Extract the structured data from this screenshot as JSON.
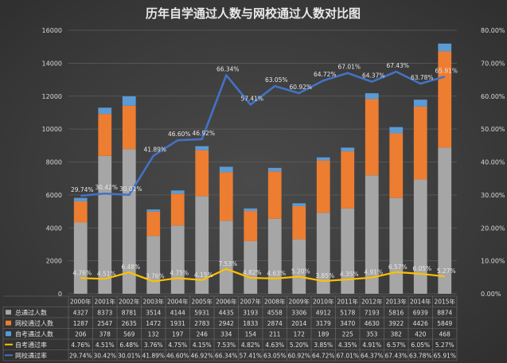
{
  "chart_data": {
    "type": "bar",
    "title": "历年自学通过人数与网校通过人数对比图",
    "categories": [
      "2000年",
      "2001年",
      "2002年",
      "2003年",
      "2004年",
      "2005年",
      "2006年",
      "2007年",
      "2008年",
      "2009年",
      "2010年",
      "2011年",
      "2012年",
      "2013年",
      "2014年",
      "2015年"
    ],
    "left_axis": {
      "ylim": [
        0,
        16000
      ],
      "ticks": [
        "0",
        "2000",
        "4000",
        "6000",
        "8000",
        "10000",
        "12000",
        "14000",
        "16000"
      ]
    },
    "right_axis": {
      "ylim": [
        0,
        80
      ],
      "ticks": [
        "0.00%",
        "10.00%",
        "20.00%",
        "30.00%",
        "40.00%",
        "50.00%",
        "60.00%",
        "70.00%",
        "80.00%"
      ]
    },
    "series": [
      {
        "name": "总通过人数",
        "kind": "bar",
        "axis": "left",
        "color": "#a6a6a6",
        "values": [
          4327,
          8373,
          8781,
          3514,
          4144,
          5931,
          4435,
          3193,
          4558,
          3306,
          4912,
          5178,
          7193,
          5816,
          6939,
          8874
        ]
      },
      {
        "name": "网校通过人数",
        "kind": "bar",
        "axis": "left",
        "color": "#ed7d31",
        "values": [
          1287,
          2547,
          2635,
          1472,
          1931,
          2783,
          2942,
          1833,
          2874,
          2014,
          3179,
          3470,
          4630,
          3922,
          4426,
          5849
        ]
      },
      {
        "name": "自考通过人数",
        "kind": "bar",
        "axis": "left",
        "color": "#5b9bd5",
        "values": [
          206,
          378,
          569,
          132,
          197,
          246,
          334,
          154,
          211,
          172,
          189,
          225,
          353,
          382,
          420,
          468
        ]
      },
      {
        "name": "自考通过率",
        "kind": "line",
        "axis": "right",
        "color": "#ffc000",
        "values": [
          4.76,
          4.51,
          6.48,
          3.76,
          4.75,
          4.15,
          7.53,
          4.82,
          4.63,
          5.2,
          3.85,
          4.35,
          4.91,
          6.57,
          6.05,
          5.27
        ],
        "labels": [
          "4.76%",
          "4.51%",
          "6.48%",
          "3.76%",
          "4.75%",
          "4.15%",
          "7.53%",
          "4.82%",
          "4.63%",
          "5.20%",
          "3.85%",
          "4.35%",
          "4.91%",
          "6.57%",
          "6.05%",
          "5.27%"
        ]
      },
      {
        "name": "网校通过率",
        "kind": "line",
        "axis": "right",
        "color": "#4472c4",
        "values": [
          29.74,
          30.42,
          30.01,
          41.89,
          46.6,
          46.92,
          66.34,
          57.41,
          63.05,
          60.92,
          64.72,
          67.01,
          64.37,
          67.43,
          63.78,
          65.91
        ],
        "labels": [
          "29.74%",
          "30.42%",
          "30.01%",
          "41.89%",
          "46.60%",
          "46.92%",
          "66.34%",
          "57.41%",
          "63.05%",
          "60.92%",
          "64.72%",
          "67.01%",
          "64.37%",
          "67.43%",
          "63.78%",
          "65.91%"
        ]
      }
    ],
    "stacked": true,
    "legend": "table-bottom",
    "grid": true
  }
}
